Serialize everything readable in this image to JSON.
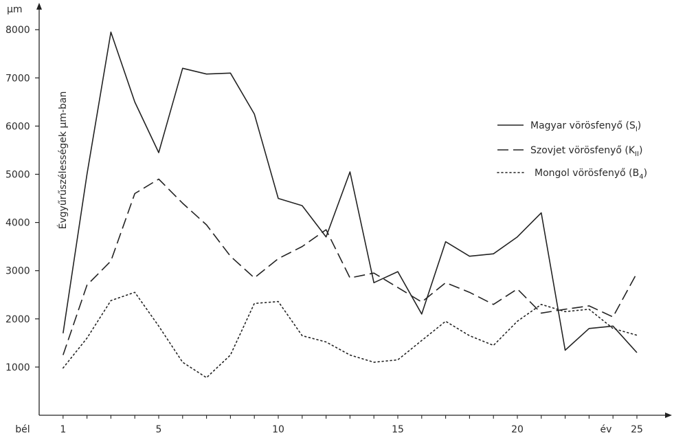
{
  "chart_data": {
    "type": "line",
    "y_unit": "µm",
    "ylabel": "Évgyűrűszélességek µm-ban",
    "x_origin_label": "bél",
    "x_unit": "év",
    "x_tick_values": [
      1,
      5,
      10,
      15,
      20,
      25
    ],
    "x_tick_labels": [
      "1",
      "5",
      "10",
      "15",
      "20",
      "25"
    ],
    "y_tick_values": [
      1000,
      2000,
      3000,
      4000,
      5000,
      6000,
      7000,
      8000
    ],
    "y_tick_labels": [
      "1000",
      "2000",
      "3000",
      "4000",
      "5000",
      "6000",
      "7000",
      "8000"
    ],
    "xlim": [
      0,
      26
    ],
    "ylim": [
      0,
      8300
    ],
    "grid": false,
    "legend_position": "right",
    "x": [
      1,
      2,
      3,
      4,
      5,
      6,
      7,
      8,
      9,
      10,
      11,
      12,
      13,
      14,
      15,
      16,
      17,
      18,
      19,
      20,
      21,
      22,
      23,
      24,
      25
    ],
    "series": [
      {
        "name": "Magyar vörösfenyő (S",
        "name_sub": "I",
        "name_suffix": ")",
        "style": "solid",
        "color": "#222222",
        "values": [
          1700,
          5000,
          7950,
          6500,
          5450,
          7200,
          7080,
          7100,
          6250,
          4500,
          4350,
          3700,
          5050,
          2750,
          2980,
          2100,
          3600,
          3300,
          3350,
          3700,
          4200,
          1350,
          1800,
          1850,
          1300
        ]
      },
      {
        "name": "Szovjet vörösfenyő (K",
        "name_sub": "II",
        "name_suffix": ")",
        "style": "dashed",
        "color": "#222222",
        "values": [
          1250,
          2700,
          3200,
          4600,
          4900,
          4400,
          3950,
          3300,
          2850,
          3250,
          3500,
          3850,
          2850,
          2950,
          2650,
          2350,
          2750,
          2550,
          2300,
          2620,
          2120,
          2200,
          2270,
          2040,
          2950
        ]
      },
      {
        "name": "Mongol vörösfenyő (B",
        "name_sub": "4",
        "name_suffix": ")",
        "style": "dotted",
        "color": "#222222",
        "values": [
          980,
          1600,
          2380,
          2550,
          1850,
          1100,
          780,
          1250,
          2320,
          2360,
          1650,
          1520,
          1250,
          1100,
          1150,
          1550,
          1950,
          1650,
          1450,
          1950,
          2300,
          2150,
          2200,
          1800,
          1660
        ]
      }
    ]
  }
}
